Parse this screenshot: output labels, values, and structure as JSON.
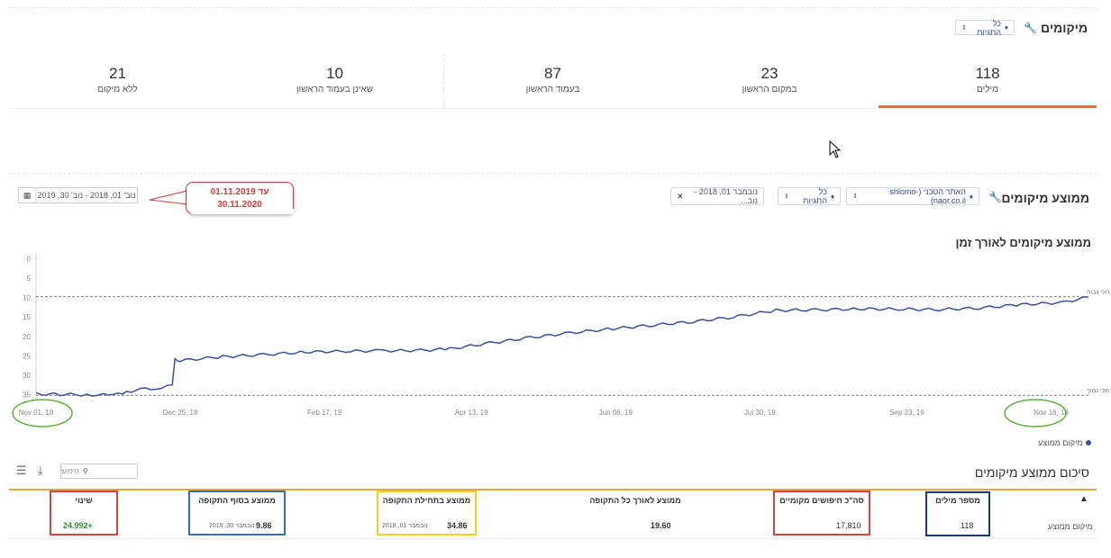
{
  "header": {
    "title": "מיקומים",
    "tags_pill": "כל התגיות"
  },
  "stats": [
    {
      "value": "118",
      "label": "מילים"
    },
    {
      "value": "23",
      "label": "במקום הראשון"
    },
    {
      "value": "87",
      "label": "בעמוד הראשון"
    },
    {
      "value": "10",
      "label": "שאינן בעמוד הראשון"
    },
    {
      "value": "21",
      "label": "ללא מיקום"
    }
  ],
  "avg_section": {
    "title": "ממוצע מיקומים",
    "site_pill": "האתר הטכני (shlomo-naor.co.il)",
    "tags_pill": "כל התגיות",
    "date_pill": "נובמבר 01, 2018 -נוב...",
    "date_range": "נוב' 01, 2018 - נוב' 30, 2019",
    "callout_line1": "01.11.2019 עד",
    "callout_line2": "30.11.2020"
  },
  "chart_data": {
    "type": "line",
    "title": "ממוצע מיקומים לאורך זמן",
    "y_ticks": [
      0,
      5,
      10,
      15,
      20,
      25,
      30,
      35
    ],
    "ylim": [
      -1,
      36
    ],
    "y_inverted": true,
    "x_ticks": [
      "Nov 01, 18",
      "Dec 25, 18",
      "Feb 17, 19",
      "Apr 13, 19",
      "Jun 06, 19",
      "Jul 30, 19",
      "Sep 23, 19",
      "Nov 16, 19"
    ],
    "xlim": [
      "2018-11-01",
      "2019-11-30"
    ],
    "ref_lines": [
      {
        "label": "9.81 :הכי גבוה",
        "value": 9.81
      },
      {
        "label": "35.13 :הכי נמוך",
        "value": 35.13
      }
    ],
    "series": [
      {
        "name": "מיקום ממוצע",
        "color": "#3a4fa8",
        "points": [
          [
            "2018-11-01",
            34.8
          ],
          [
            "2018-11-10",
            34.9
          ],
          [
            "2018-11-20",
            35.0
          ],
          [
            "2018-11-30",
            35.1
          ],
          [
            "2018-12-05",
            34.2
          ],
          [
            "2018-12-12",
            33.5
          ],
          [
            "2018-12-18",
            33.3
          ],
          [
            "2018-12-22",
            32.6
          ],
          [
            "2018-12-23",
            26.0
          ],
          [
            "2018-12-25",
            26.2
          ],
          [
            "2019-01-10",
            25.2
          ],
          [
            "2019-01-25",
            24.7
          ],
          [
            "2019-02-10",
            24.0
          ],
          [
            "2019-02-25",
            23.8
          ],
          [
            "2019-03-10",
            23.7
          ],
          [
            "2019-03-25",
            23.6
          ],
          [
            "2019-04-05",
            23.2
          ],
          [
            "2019-04-20",
            21.7
          ],
          [
            "2019-05-05",
            20.3
          ],
          [
            "2019-05-20",
            19.1
          ],
          [
            "2019-06-05",
            18.0
          ],
          [
            "2019-06-20",
            17.1
          ],
          [
            "2019-07-05",
            16.2
          ],
          [
            "2019-07-20",
            15.0
          ],
          [
            "2019-08-05",
            13.3
          ],
          [
            "2019-08-20",
            13.2
          ],
          [
            "2019-09-05",
            12.9
          ],
          [
            "2019-09-20",
            13.0
          ],
          [
            "2019-10-05",
            13.1
          ],
          [
            "2019-10-20",
            12.7
          ],
          [
            "2019-11-05",
            11.8
          ],
          [
            "2019-11-20",
            11.3
          ],
          [
            "2019-11-30",
            9.9
          ]
        ]
      }
    ]
  },
  "summary": {
    "title": "סיכום ממוצע מיקומים",
    "search_placeholder": "חיפוש",
    "row_label": "מיקום ממוצע",
    "columns": [
      {
        "head": "מספר מילים",
        "value": "118"
      },
      {
        "head": "סה\"כ חיפושים מקומיים",
        "value": "17,810"
      },
      {
        "head": "ממוצע לאורך כל התקופה",
        "value": "19.60"
      },
      {
        "head": "ממוצע בתחילת התקופה",
        "value": "34.86",
        "date": "נובמבר 01, 2018"
      },
      {
        "head": "ממוצע בסוף התקופה",
        "value": "9.86",
        "date": "נובמבר 30, 2019"
      },
      {
        "head": "שינוי",
        "value": "+24.992"
      }
    ]
  },
  "colors": {
    "accent": "#e8722b",
    "series": "#3a4fa8",
    "highlight_red": "#e0403a",
    "highlight_blue": "#2f6fd6",
    "highlight_yellow": "#f0d020",
    "highlight_navy": "#1a3a7a",
    "positive": "#2e8b2e",
    "ellipse_green": "#5db33a"
  }
}
